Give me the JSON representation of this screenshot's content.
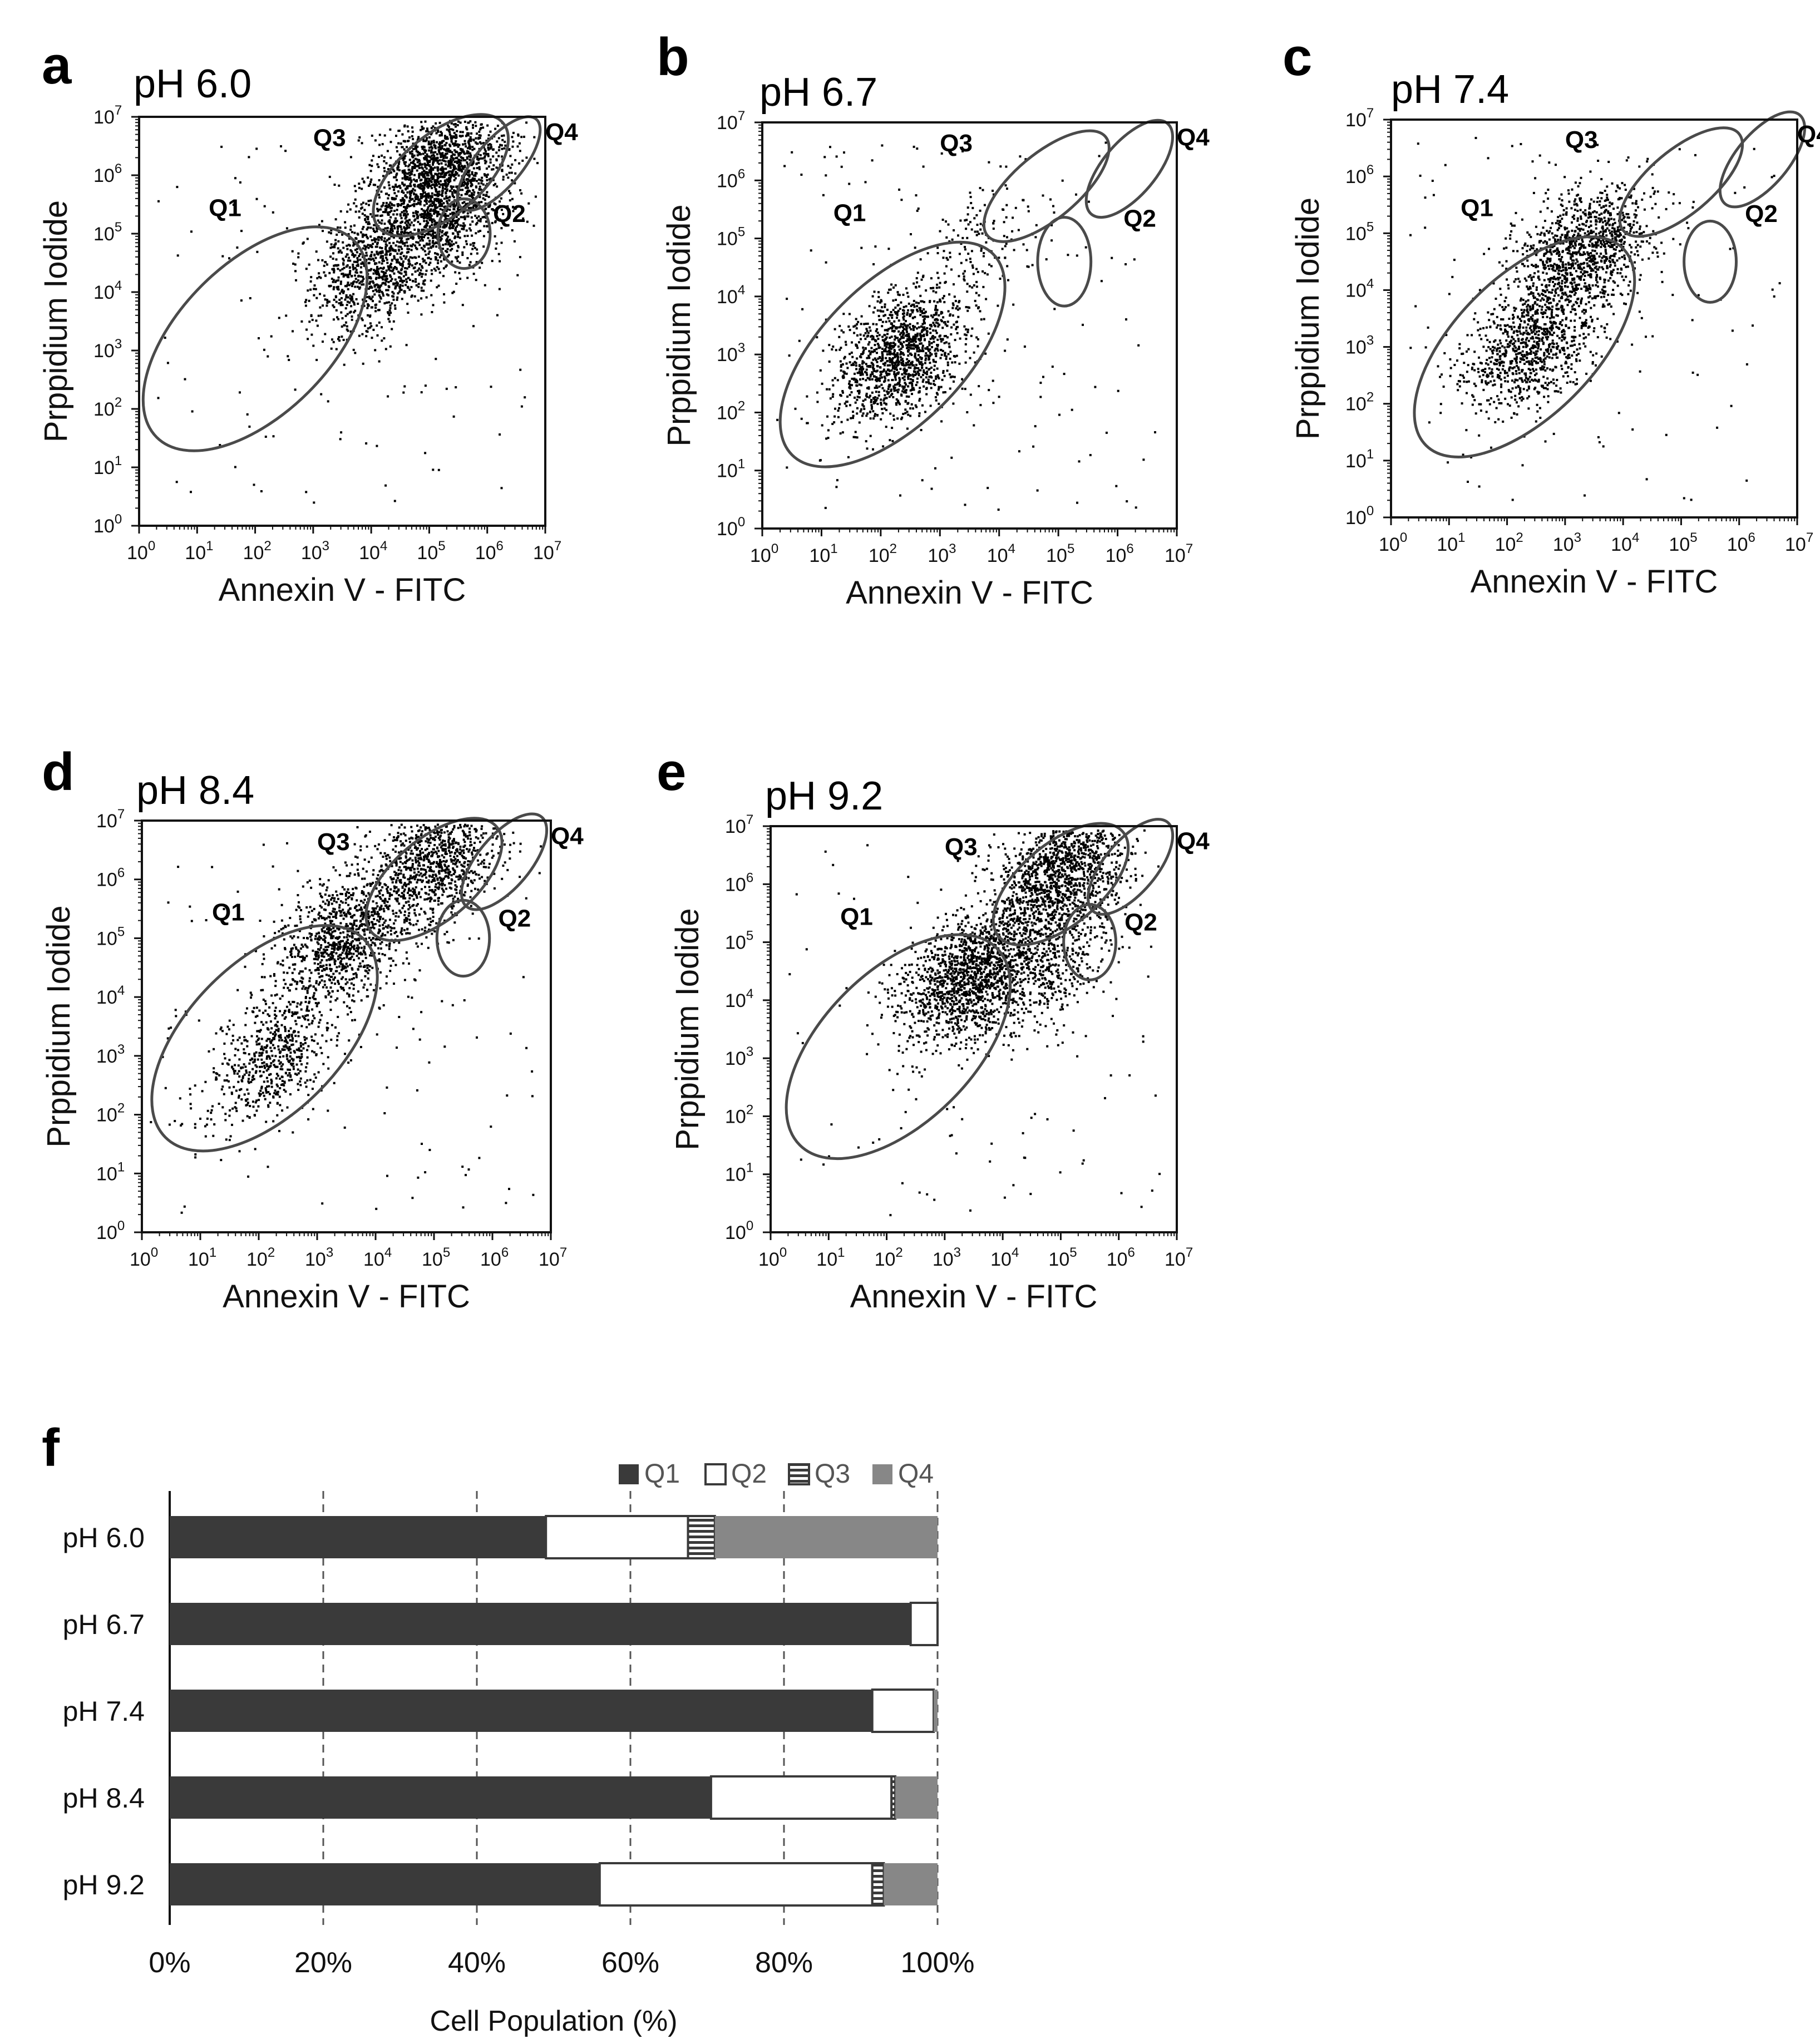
{
  "panels": [
    {
      "letter": "a",
      "title": "pH 6.0"
    },
    {
      "letter": "b",
      "title": "pH 6.7"
    },
    {
      "letter": "c",
      "title": "pH 7.4"
    },
    {
      "letter": "d",
      "title": "pH 8.4"
    },
    {
      "letter": "e",
      "title": "pH 9.2"
    }
  ],
  "scatter_axes": {
    "xlabel": "Annexin V - FITC",
    "ylabel": "Prppidium Iodide",
    "decades": [
      "0",
      "1",
      "2",
      "3",
      "4",
      "5",
      "6",
      "7"
    ],
    "gate_labels": [
      "Q1",
      "Q2",
      "Q3",
      "Q4"
    ]
  },
  "bar_letter": "f",
  "colors": {
    "q1": "#3a3a3a",
    "q2": "#ffffff",
    "q3": "#3a3a3a",
    "q4": "#878787",
    "gate": "#4a4a4a",
    "dots": "#000000"
  },
  "chart_data": [
    {
      "type": "scatter",
      "panel": "a",
      "title": "pH 6.0",
      "xlabel": "Annexin V - FITC",
      "ylabel": "Prppidium Iodide",
      "xscale": "log",
      "yscale": "log",
      "xlim": [
        1,
        10000000
      ],
      "ylim": [
        1,
        10000000
      ],
      "clusters": [
        {
          "center_log": [
            5.1,
            6.1
          ],
          "n": 1400
        },
        {
          "center_log": [
            4.0,
            4.4
          ],
          "n": 900
        },
        {
          "center_log": [
            5.3,
            5.3
          ],
          "n": 700
        }
      ]
    },
    {
      "type": "scatter",
      "panel": "b",
      "title": "pH 6.7",
      "xlabel": "Annexin V - FITC",
      "ylabel": "Prppidium Iodide",
      "xscale": "log",
      "yscale": "log",
      "xlim": [
        1,
        10000000
      ],
      "ylim": [
        1,
        10000000
      ],
      "clusters": [
        {
          "center_log": [
            2.3,
            3.0
          ],
          "n": 1300
        },
        {
          "center_log": [
            3.6,
            4.9
          ],
          "n": 160
        }
      ]
    },
    {
      "type": "scatter",
      "panel": "c",
      "title": "pH 7.4",
      "xlabel": "Annexin V - FITC",
      "ylabel": "Prppidium Iodide",
      "xscale": "log",
      "yscale": "log",
      "xlim": [
        1,
        10000000
      ],
      "ylim": [
        1,
        10000000
      ],
      "clusters": [
        {
          "center_log": [
            3.3,
            4.7
          ],
          "n": 1100
        },
        {
          "center_log": [
            2.4,
            3.0
          ],
          "n": 900
        }
      ]
    },
    {
      "type": "scatter",
      "panel": "d",
      "title": "pH 8.4",
      "xlabel": "Annexin V - FITC",
      "ylabel": "Prppidium Iodide",
      "xscale": "log",
      "yscale": "log",
      "xlim": [
        1,
        10000000
      ],
      "ylim": [
        1,
        10000000
      ],
      "clusters": [
        {
          "center_log": [
            5.0,
            6.3
          ],
          "n": 1000
        },
        {
          "center_log": [
            3.4,
            5.0
          ],
          "n": 1000
        },
        {
          "center_log": [
            2.2,
            3.0
          ],
          "n": 600
        }
      ]
    },
    {
      "type": "scatter",
      "panel": "e",
      "title": "pH 9.2",
      "xlabel": "Annexin V - FITC",
      "ylabel": "Prppidium Iodide",
      "xscale": "log",
      "yscale": "log",
      "xlim": [
        1,
        10000000
      ],
      "ylim": [
        1,
        10000000
      ],
      "clusters": [
        {
          "center_log": [
            5.0,
            6.2
          ],
          "n": 1300
        },
        {
          "center_log": [
            3.4,
            4.4
          ],
          "n": 1400
        },
        {
          "center_log": [
            4.7,
            4.6
          ],
          "n": 500
        }
      ]
    },
    {
      "type": "bar",
      "orientation": "horizontal",
      "stacked": true,
      "panel": "f",
      "categories": [
        "pH 6.0",
        "pH 6.7",
        "pH 7.4",
        "pH 8.4",
        "pH 9.2"
      ],
      "series": [
        {
          "name": "Q1",
          "values": [
            49,
            96.5,
            91.5,
            70.5,
            56
          ]
        },
        {
          "name": "Q2",
          "values": [
            18.5,
            3.5,
            8,
            23.5,
            35.5
          ]
        },
        {
          "name": "Q3",
          "values": [
            3.5,
            0,
            0,
            0.5,
            1.5
          ]
        },
        {
          "name": "Q4",
          "values": [
            29,
            0,
            0.5,
            5.5,
            7
          ]
        }
      ],
      "xlabel": "Cell Population (%)",
      "xticks": [
        "0%",
        "20%",
        "40%",
        "60%",
        "80%",
        "100%"
      ],
      "xlim": [
        0,
        100
      ],
      "grid": "vertical dashed",
      "legend": "top-right"
    }
  ]
}
